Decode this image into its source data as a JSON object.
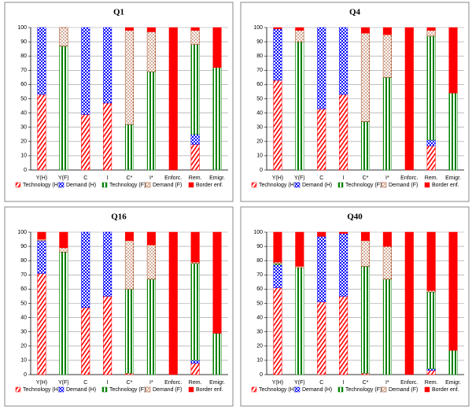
{
  "chart_data": [
    {
      "type": "stacked-bar",
      "title": "Q1",
      "categories": [
        "Y(H)",
        "Y(F)",
        "C",
        "I",
        "C*",
        "I*",
        "Enforc.",
        "Rem.",
        "Emigr."
      ],
      "ylim": [
        0,
        100
      ],
      "yticks": [
        0,
        10,
        20,
        30,
        40,
        50,
        60,
        70,
        80,
        90,
        100
      ],
      "grid": true,
      "series": [
        {
          "name": "Technology (H)",
          "color": "#ff0000",
          "pattern": "diagonal",
          "values": [
            53,
            0,
            39,
            47,
            0,
            0,
            0,
            18,
            0
          ]
        },
        {
          "name": "Demand (H)",
          "color": "#0000ff",
          "pattern": "checker",
          "values": [
            47,
            0,
            61,
            53,
            0,
            0,
            0,
            7,
            0
          ]
        },
        {
          "name": "Technology (F)",
          "color": "#008000",
          "pattern": "vertical",
          "values": [
            0,
            87,
            0,
            0,
            32,
            69,
            0,
            63,
            72
          ]
        },
        {
          "name": "Demand (F)",
          "color": "#993300",
          "pattern": "dots",
          "values": [
            0,
            13,
            0,
            0,
            66,
            28,
            0,
            10,
            0
          ]
        },
        {
          "name": "Border enf.",
          "color": "#ff0000",
          "pattern": "solid",
          "values": [
            0,
            0,
            0,
            0,
            2,
            3,
            100,
            2,
            28
          ]
        }
      ]
    },
    {
      "type": "stacked-bar",
      "title": "Q4",
      "categories": [
        "Y(H)",
        "Y(F)",
        "C",
        "I",
        "C*",
        "I*",
        "Enforc.",
        "Rem.",
        "Emigr."
      ],
      "ylim": [
        0,
        100
      ],
      "yticks": [
        0,
        10,
        20,
        30,
        40,
        50,
        60,
        70,
        80,
        90,
        100
      ],
      "grid": true,
      "series": [
        {
          "name": "Technology (H)",
          "color": "#ff0000",
          "pattern": "diagonal",
          "values": [
            63,
            0,
            43,
            53,
            0,
            0,
            0,
            17,
            0
          ]
        },
        {
          "name": "Demand (H)",
          "color": "#0000ff",
          "pattern": "checker",
          "values": [
            36,
            0,
            57,
            47,
            0,
            0,
            0,
            4,
            0
          ]
        },
        {
          "name": "Technology (F)",
          "color": "#008000",
          "pattern": "vertical",
          "values": [
            0,
            90,
            0,
            0,
            34,
            65,
            0,
            73,
            54
          ]
        },
        {
          "name": "Demand (F)",
          "color": "#993300",
          "pattern": "dots",
          "values": [
            0,
            8,
            0,
            0,
            62,
            30,
            0,
            4,
            0
          ]
        },
        {
          "name": "Border enf.",
          "color": "#ff0000",
          "pattern": "solid",
          "values": [
            1,
            2,
            0,
            0,
            4,
            5,
            100,
            2,
            46
          ]
        }
      ]
    },
    {
      "type": "stacked-bar",
      "title": "Q16",
      "categories": [
        "Y(H)",
        "Y(F)",
        "C",
        "I",
        "C*",
        "I*",
        "Enforc.",
        "Rem.",
        "Emigr."
      ],
      "ylim": [
        0,
        100
      ],
      "yticks": [
        0,
        10,
        20,
        30,
        40,
        50,
        60,
        70,
        80,
        90,
        100
      ],
      "grid": true,
      "series": [
        {
          "name": "Technology (H)",
          "color": "#ff0000",
          "pattern": "diagonal",
          "values": [
            71,
            0,
            47,
            55,
            1,
            0,
            0,
            8,
            0
          ]
        },
        {
          "name": "Demand (H)",
          "color": "#0000ff",
          "pattern": "checker",
          "values": [
            23,
            0,
            53,
            45,
            0,
            0,
            0,
            2,
            0
          ]
        },
        {
          "name": "Technology (F)",
          "color": "#008000",
          "pattern": "vertical",
          "values": [
            0,
            86,
            0,
            0,
            59,
            67,
            0,
            68,
            29
          ]
        },
        {
          "name": "Demand (F)",
          "color": "#993300",
          "pattern": "dots",
          "values": [
            1,
            3,
            0,
            0,
            34,
            24,
            0,
            1,
            0
          ]
        },
        {
          "name": "Border enf.",
          "color": "#ff0000",
          "pattern": "solid",
          "values": [
            5,
            11,
            0,
            0,
            6,
            9,
            100,
            21,
            71
          ]
        }
      ]
    },
    {
      "type": "stacked-bar",
      "title": "Q40",
      "categories": [
        "Y(H)",
        "Y(F)",
        "C",
        "I",
        "C*",
        "I*",
        "Enforc.",
        "Rem.",
        "Emigr."
      ],
      "ylim": [
        0,
        100
      ],
      "yticks": [
        0,
        10,
        20,
        30,
        40,
        50,
        60,
        70,
        80,
        90,
        100
      ],
      "grid": true,
      "series": [
        {
          "name": "Technology (H)",
          "color": "#ff0000",
          "pattern": "diagonal",
          "values": [
            61,
            0,
            51,
            55,
            1,
            0,
            0,
            3,
            0
          ]
        },
        {
          "name": "Demand (H)",
          "color": "#0000ff",
          "pattern": "checker",
          "values": [
            16,
            0,
            46,
            44,
            0,
            0,
            0,
            1,
            0
          ]
        },
        {
          "name": "Technology (F)",
          "color": "#008000",
          "pattern": "vertical",
          "values": [
            1,
            75,
            0,
            0,
            75,
            67,
            0,
            54,
            17
          ]
        },
        {
          "name": "Demand (F)",
          "color": "#993300",
          "pattern": "dots",
          "values": [
            1,
            1,
            0,
            0,
            18,
            23,
            0,
            1,
            0
          ]
        },
        {
          "name": "Border enf.",
          "color": "#ff0000",
          "pattern": "solid",
          "values": [
            21,
            24,
            3,
            1,
            6,
            10,
            100,
            41,
            83
          ]
        }
      ]
    }
  ]
}
